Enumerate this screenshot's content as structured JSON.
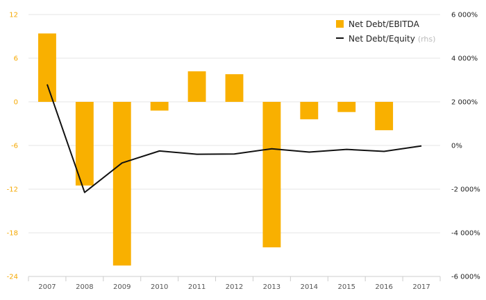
{
  "chart_data": {
    "type": "bar",
    "categories": [
      "2007",
      "2008",
      "2009",
      "2010",
      "2011",
      "2012",
      "2013",
      "2014",
      "2015",
      "2016",
      "2017"
    ],
    "series": [
      {
        "name": "Net Debt/EBITDA",
        "type": "bar",
        "axis": "left",
        "color": "#f9b000",
        "values": [
          9.4,
          -11.5,
          -22.5,
          -1.2,
          4.2,
          3.8,
          -20.0,
          -2.4,
          -1.4,
          -3.9,
          null
        ]
      },
      {
        "name": "Net Debt/Equity",
        "legend_suffix": "(rhs)",
        "type": "line",
        "axis": "right",
        "color": "#111111",
        "values": [
          2800,
          -2150,
          -800,
          -250,
          -400,
          -390,
          -150,
          -300,
          -180,
          -270,
          -20
        ]
      }
    ],
    "left_axis": {
      "ticks": [
        "12",
        "6",
        "0",
        "-6",
        "-12",
        "-18",
        "-24"
      ],
      "range": [
        -24,
        12
      ],
      "color": "#f5a800"
    },
    "right_axis": {
      "ticks": [
        "6 000%",
        "4 000%",
        "2 000%",
        "0%",
        "-2 000%",
        "-4 000%",
        "-6 000%"
      ],
      "range": [
        -6000,
        6000
      ]
    },
    "grid": true,
    "legend_position": "top-right"
  }
}
